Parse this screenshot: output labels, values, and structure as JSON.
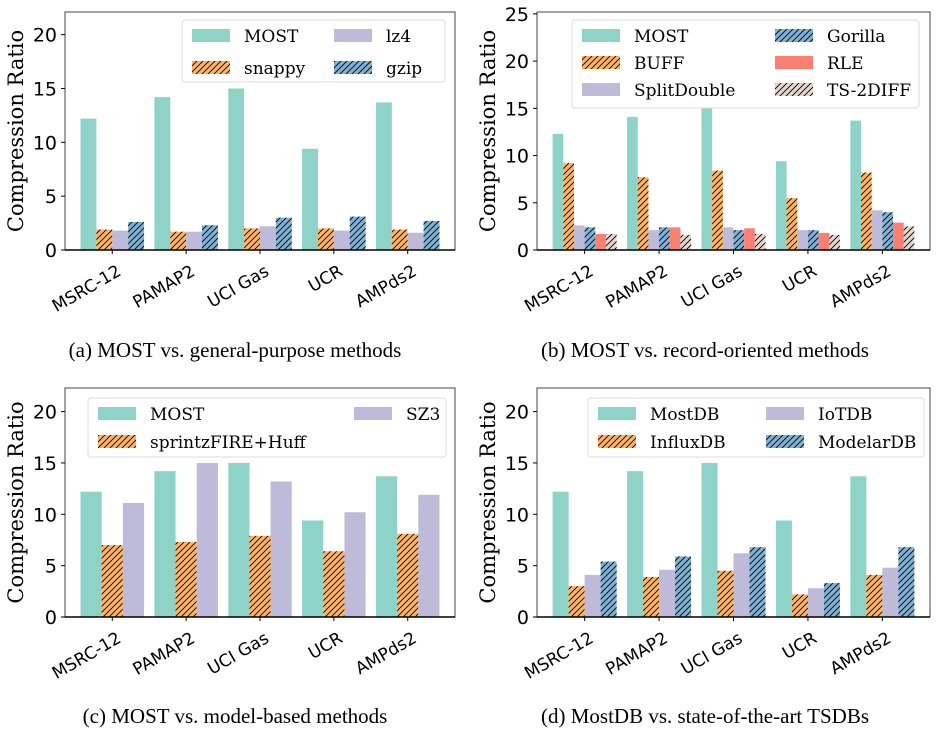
{
  "colors": {
    "MOST": "#8dd3c7",
    "orange": "#fdb462",
    "lavender": "#bebada",
    "blue": "#80b1d3",
    "red": "#fb8072",
    "beige": "#e3d7ce"
  },
  "chart_data": [
    {
      "type": "bar",
      "caption": "(a) MOST vs. general-purpose methods",
      "ylabel": "Compression Ratio",
      "ylim": [
        0,
        22.1
      ],
      "yticks": [
        0,
        5,
        10,
        15,
        20
      ],
      "categories": [
        "MSRC-12",
        "PAMAP2",
        "UCI Gas",
        "UCR",
        "AMPds2"
      ],
      "legend": {
        "placement": "top-right",
        "ncol": 2
      },
      "series": [
        {
          "name": "MOST",
          "color": "#8dd3c7",
          "hatch": false,
          "values": [
            12.2,
            14.2,
            15.0,
            9.4,
            13.7
          ]
        },
        {
          "name": "snappy",
          "color": "#fdb462",
          "hatch": true,
          "values": [
            1.9,
            1.7,
            2.0,
            2.0,
            1.9
          ]
        },
        {
          "name": "lz4",
          "color": "#bebada",
          "hatch": false,
          "values": [
            1.8,
            1.7,
            2.2,
            1.8,
            1.6
          ]
        },
        {
          "name": "gzip",
          "color": "#80b1d3",
          "hatch": true,
          "values": [
            2.6,
            2.3,
            3.0,
            3.1,
            2.7
          ]
        }
      ]
    },
    {
      "type": "bar",
      "caption": "(b) MOST vs. record-oriented methods",
      "ylabel": "Compression Ratio",
      "ylim": [
        0,
        25.2
      ],
      "yticks": [
        0,
        5,
        10,
        15,
        20,
        25
      ],
      "categories": [
        "MSRC-12",
        "PAMAP2",
        "UCI Gas",
        "UCR",
        "AMPds2"
      ],
      "legend": {
        "placement": "top",
        "ncol": 2
      },
      "series": [
        {
          "name": "MOST",
          "color": "#8dd3c7",
          "hatch": false,
          "values": [
            12.3,
            14.1,
            15.1,
            9.4,
            13.7
          ]
        },
        {
          "name": "BUFF",
          "color": "#fdb462",
          "hatch": true,
          "values": [
            9.2,
            7.7,
            8.4,
            5.5,
            8.2
          ]
        },
        {
          "name": "SplitDouble",
          "color": "#bebada",
          "hatch": false,
          "values": [
            2.6,
            2.1,
            2.4,
            2.1,
            4.2
          ]
        },
        {
          "name": "Gorilla",
          "color": "#80b1d3",
          "hatch": true,
          "values": [
            2.4,
            2.4,
            2.1,
            2.1,
            4.0
          ]
        },
        {
          "name": "RLE",
          "color": "#fb8072",
          "hatch": false,
          "values": [
            1.7,
            2.4,
            2.3,
            1.8,
            2.9
          ]
        },
        {
          "name": "TS-2DIFF",
          "color": "#e3d7ce",
          "hatch": true,
          "values": [
            1.7,
            1.6,
            1.7,
            1.6,
            2.5
          ]
        }
      ]
    },
    {
      "type": "bar",
      "caption": "(c) MOST vs. model-based methods",
      "ylabel": "Compression Ratio",
      "ylim": [
        0,
        22.3
      ],
      "yticks": [
        0,
        5,
        10,
        15,
        20
      ],
      "categories": [
        "MSRC-12",
        "PAMAP2",
        "UCI Gas",
        "UCR",
        "AMPds2"
      ],
      "legend": {
        "placement": "top",
        "ncol": 2
      },
      "series": [
        {
          "name": "MOST",
          "color": "#8dd3c7",
          "hatch": false,
          "values": [
            12.2,
            14.2,
            15.0,
            9.4,
            13.7
          ]
        },
        {
          "name": "sprintzFIRE+Huff",
          "color": "#fdb462",
          "hatch": true,
          "values": [
            7.0,
            7.3,
            7.9,
            6.4,
            8.1
          ]
        },
        {
          "name": "SZ3",
          "color": "#bebada",
          "hatch": false,
          "values": [
            11.1,
            15.0,
            13.2,
            10.2,
            11.9
          ]
        }
      ]
    },
    {
      "type": "bar",
      "caption": "(d) MostDB vs. state-of-the-art TSDBs",
      "ylabel": "Compression Ratio",
      "ylim": [
        0,
        22.3
      ],
      "yticks": [
        0,
        5,
        10,
        15,
        20
      ],
      "categories": [
        "MSRC-12",
        "PAMAP2",
        "UCI Gas",
        "UCR",
        "AMPds2"
      ],
      "legend": {
        "placement": "top-right",
        "ncol": 2
      },
      "series": [
        {
          "name": "MostDB",
          "color": "#8dd3c7",
          "hatch": false,
          "values": [
            12.2,
            14.2,
            15.0,
            9.4,
            13.7
          ]
        },
        {
          "name": "InfluxDB",
          "color": "#fdb462",
          "hatch": true,
          "values": [
            3.0,
            3.9,
            4.5,
            2.2,
            4.1
          ]
        },
        {
          "name": "IoTDB",
          "color": "#bebada",
          "hatch": false,
          "values": [
            4.1,
            4.6,
            6.2,
            2.8,
            4.8
          ]
        },
        {
          "name": "ModelarDB",
          "color": "#80b1d3",
          "hatch": true,
          "values": [
            5.4,
            5.9,
            6.8,
            3.3,
            6.8
          ]
        }
      ]
    }
  ]
}
